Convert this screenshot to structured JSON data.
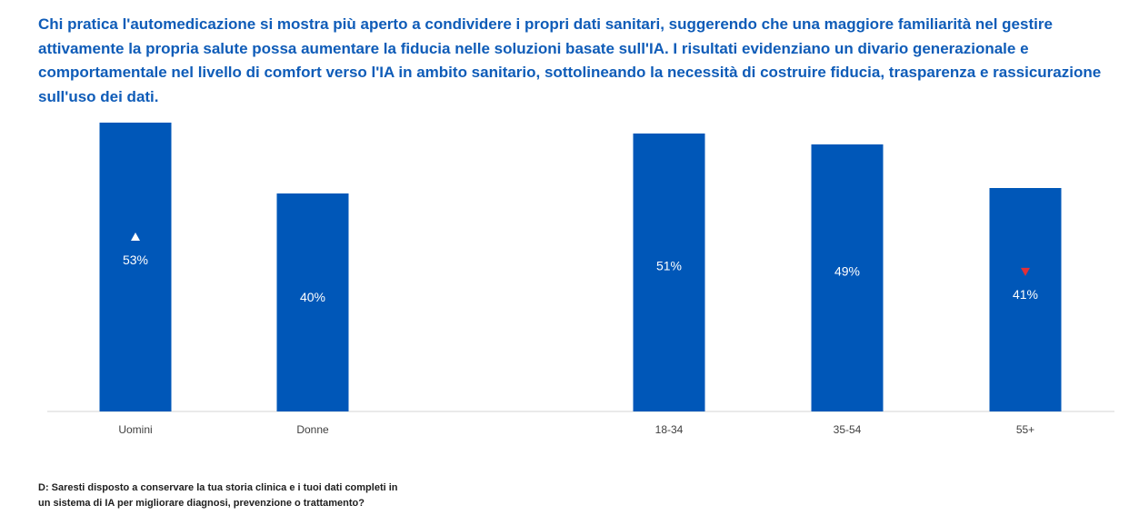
{
  "headline": "Chi pratica l'automedicazione si mostra più aperto a condividere i propri dati sanitari, suggerendo che una maggiore familiarità nel gestire attivamente la propria salute possa aumentare la fiducia nelle soluzioni basate sull'IA. I risultati evidenziano un divario generazionale e comportamentale nel livello di comfort verso l'IA in ambito sanitario, sottolineando la necessità di costruire fiducia, trasparenza e rassicurazione sull'uso dei dati.",
  "footnote": {
    "line1": "D: Saresti disposto a conservare la tua storia clinica e i tuoi dati completi in",
    "line2": "un sistema di IA per migliorare diagnosi, prevenzione o trattamento?"
  },
  "colors": {
    "bar": "#0057B8",
    "headline": "#0F5CB8",
    "marker_up": "#FFFFFF",
    "marker_down": "#E0303A"
  },
  "chart_data": {
    "type": "bar",
    "categories": [
      "Uomini",
      "Donne",
      "18-34",
      "35-54",
      "55+"
    ],
    "values": [
      53,
      40,
      51,
      49,
      41
    ],
    "labels": [
      "53%",
      "40%",
      "51%",
      "49%",
      "41%"
    ],
    "markers": [
      "up",
      "",
      "",
      "",
      "down"
    ],
    "ylim": [
      0,
      55
    ],
    "grid": false,
    "legend": "none"
  }
}
